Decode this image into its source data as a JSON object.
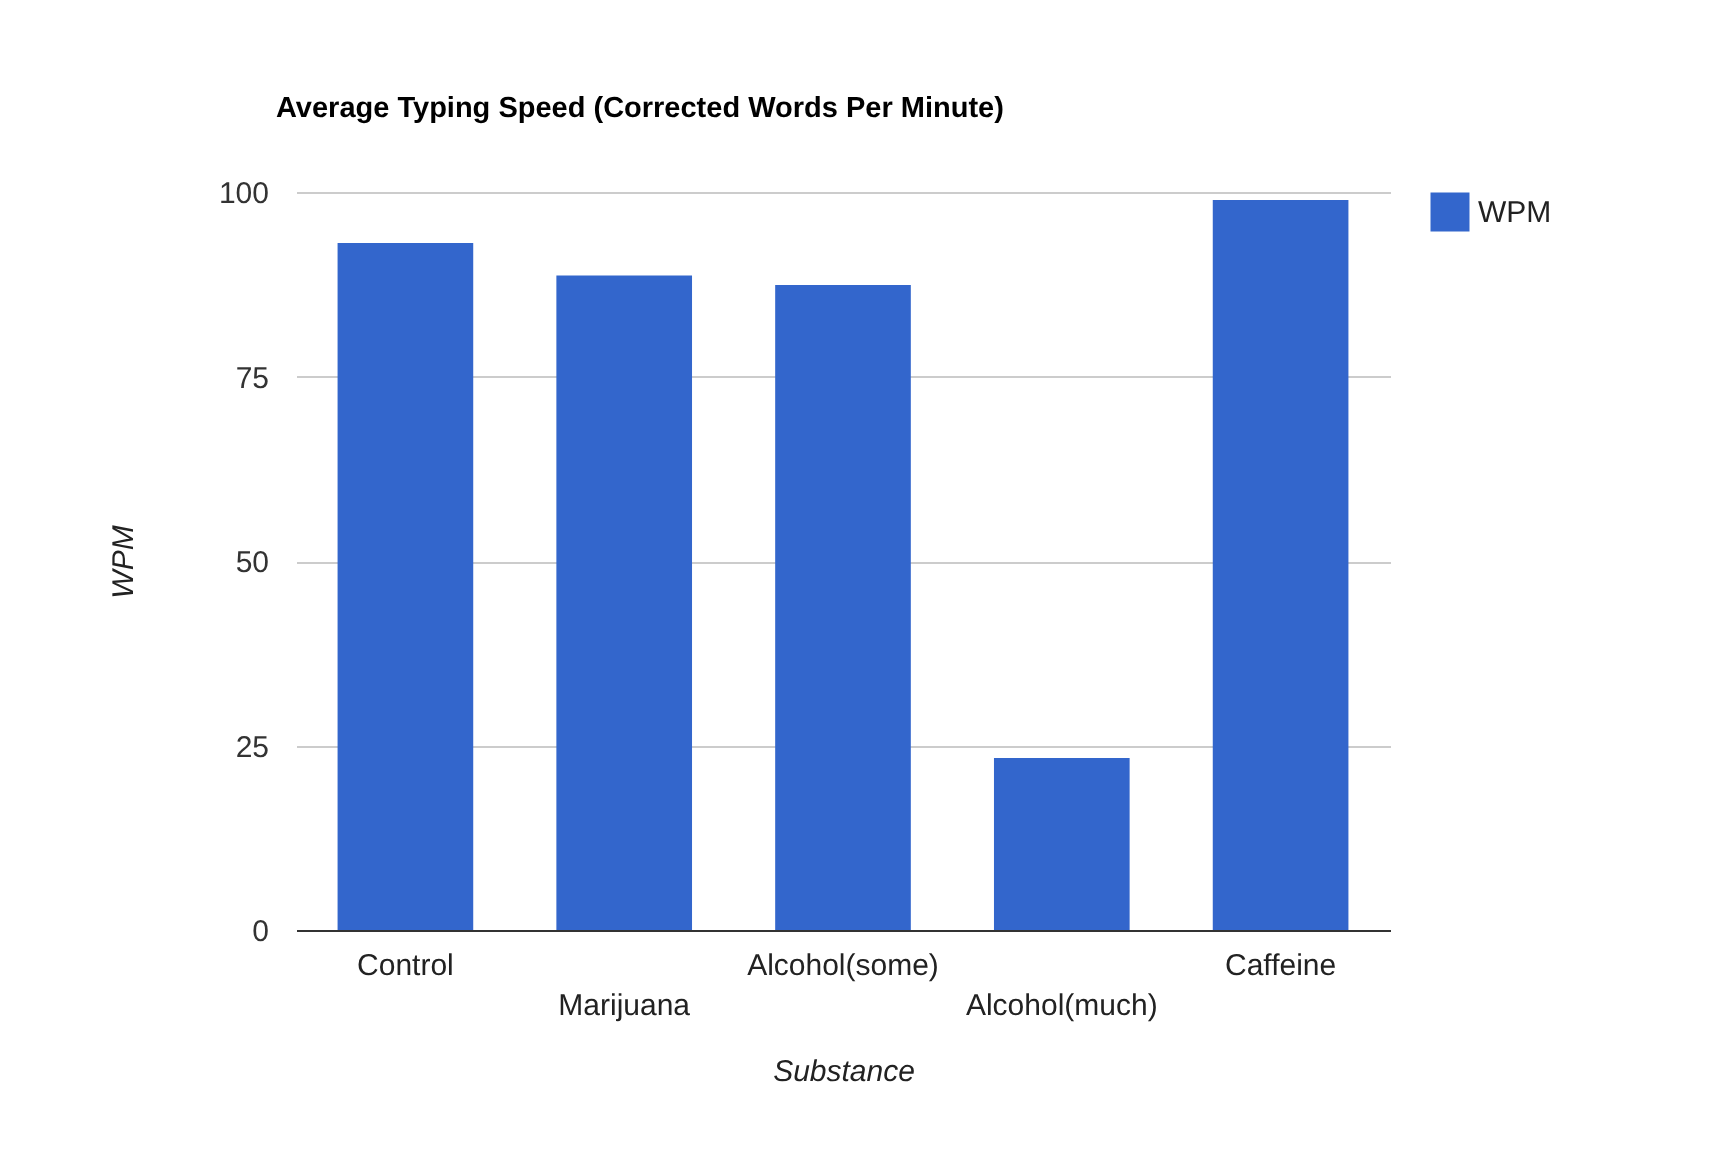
{
  "chart_data": {
    "type": "bar",
    "title": "Average Typing Speed (Corrected Words Per Minute)",
    "xlabel": "Substance",
    "ylabel": "WPM",
    "categories": [
      "Control",
      "Marijuana",
      "Alcohol(some)",
      "Alcohol(much)",
      "Caffeine"
    ],
    "series": [
      {
        "name": "WPM",
        "color": "#3366cc",
        "values": [
          93.1,
          88.7,
          87.4,
          23.3,
          98.9
        ]
      }
    ],
    "ylim": [
      0,
      100
    ],
    "yticks": [
      0,
      25,
      50,
      75,
      100
    ],
    "grid": "y",
    "legend": "top right"
  }
}
